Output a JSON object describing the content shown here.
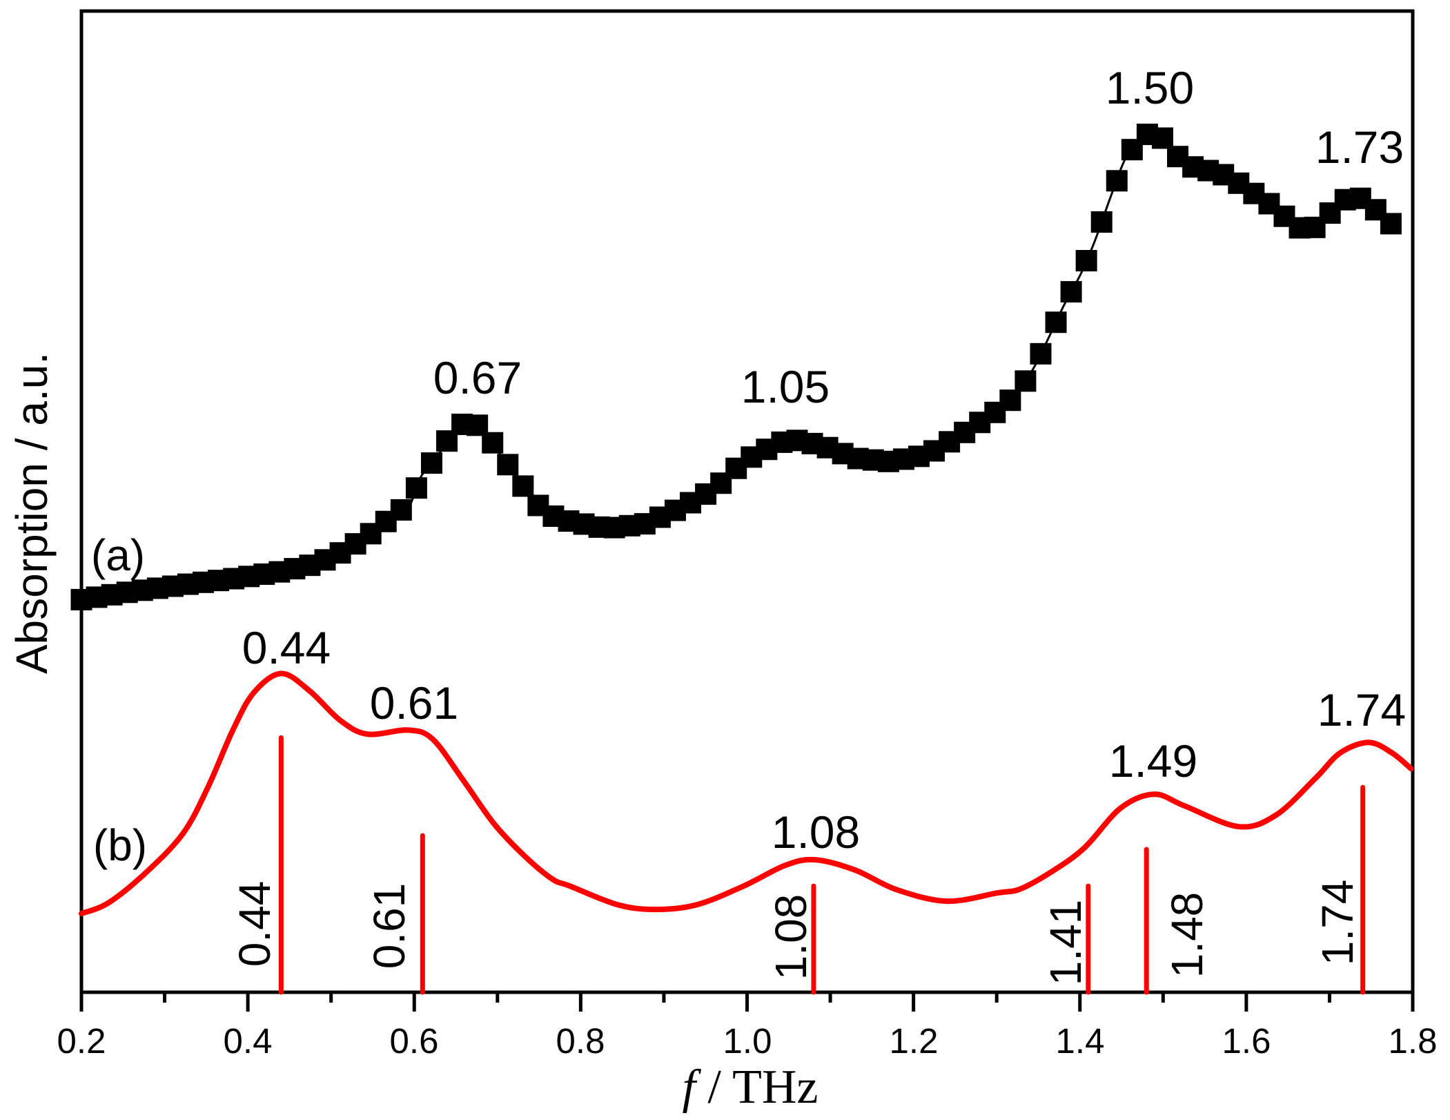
{
  "chart_data": {
    "type": "line",
    "title": "",
    "xlabel": "f / THz",
    "xlabel_italic_part": "f",
    "xlabel_rest": " / THz",
    "ylabel": "Absorption / a.u.",
    "xlim": [
      0.2,
      1.8
    ],
    "ylim": [
      0,
      14.22
    ],
    "x_ticks": [
      "0.2",
      "0.4",
      "0.6",
      "0.8",
      "1.0",
      "1.2",
      "1.4",
      "1.6",
      "1.8"
    ],
    "x_tick_values": [
      0.2,
      0.4,
      0.6,
      0.8,
      1.0,
      1.2,
      1.4,
      1.6,
      1.8
    ],
    "x_minor_tick_values": [
      0.3,
      0.5,
      0.7,
      0.9,
      1.1,
      1.3,
      1.5,
      1.7
    ],
    "y_ticks": [],
    "grid": false,
    "legend": null,
    "series": [
      {
        "name": "(a)",
        "label": "(a)",
        "style": "line+square-markers",
        "color": "#000000",
        "x": [
          0.2,
          0.257,
          0.332,
          0.387,
          0.442,
          0.479,
          0.504,
          0.522,
          0.541,
          0.559,
          0.576,
          0.594,
          0.608,
          0.63,
          0.648,
          0.667,
          0.685,
          0.703,
          0.722,
          0.74,
          0.758,
          0.781,
          0.831,
          0.878,
          0.924,
          0.962,
          0.996,
          1.032,
          1.051,
          1.091,
          1.129,
          1.172,
          1.217,
          1.256,
          1.29,
          1.309,
          1.327,
          1.345,
          1.363,
          1.381,
          1.401,
          1.418,
          1.437,
          1.455,
          1.474,
          1.492,
          1.51,
          1.528,
          1.547,
          1.565,
          1.583,
          1.601,
          1.62,
          1.638,
          1.656,
          1.675,
          1.692,
          1.711,
          1.73,
          1.748,
          1.766,
          1.785
        ],
        "y": [
          5.69,
          5.8,
          5.92,
          6.0,
          6.1,
          6.2,
          6.32,
          6.44,
          6.59,
          6.74,
          6.94,
          7.05,
          7.47,
          7.81,
          8.16,
          8.3,
          8.13,
          7.8,
          7.49,
          7.17,
          6.94,
          6.84,
          6.72,
          6.79,
          7.04,
          7.3,
          7.7,
          7.92,
          8.02,
          7.92,
          7.74,
          7.69,
          7.79,
          8.07,
          8.34,
          8.49,
          8.71,
          9.06,
          9.5,
          9.96,
          10.41,
          10.89,
          11.53,
          12.09,
          12.39,
          12.5,
          12.2,
          11.99,
          11.92,
          11.89,
          11.79,
          11.64,
          11.49,
          11.34,
          11.12,
          11.02,
          11.17,
          11.44,
          11.55,
          11.44,
          11.2,
          11.05
        ]
      },
      {
        "name": "(b)",
        "label": "(b)",
        "style": "smooth-line",
        "color": "#ff0000",
        "x": [
          0.2,
          0.233,
          0.278,
          0.322,
          0.352,
          0.382,
          0.407,
          0.44,
          0.474,
          0.511,
          0.544,
          0.592,
          0.622,
          0.659,
          0.696,
          0.733,
          0.766,
          0.787,
          0.844,
          0.89,
          0.94,
          0.996,
          1.046,
          1.082,
          1.13,
          1.179,
          1.24,
          1.301,
          1.329,
          1.369,
          1.406,
          1.449,
          1.489,
          1.526,
          1.591,
          1.636,
          1.683,
          1.713,
          1.747,
          1.775,
          1.798
        ],
        "y": [
          1.14,
          1.3,
          1.74,
          2.3,
          2.97,
          3.8,
          4.34,
          4.62,
          4.37,
          3.94,
          3.74,
          3.8,
          3.67,
          3.07,
          2.44,
          1.97,
          1.64,
          1.54,
          1.27,
          1.2,
          1.27,
          1.54,
          1.84,
          1.92,
          1.77,
          1.49,
          1.32,
          1.44,
          1.5,
          1.77,
          2.1,
          2.67,
          2.87,
          2.7,
          2.4,
          2.57,
          3.1,
          3.47,
          3.62,
          3.47,
          3.24
        ]
      }
    ],
    "sticks": {
      "color": "#ff0000",
      "x": [
        0.44,
        0.61,
        1.08,
        1.41,
        1.48,
        1.74
      ],
      "height": [
        3.69,
        2.27,
        1.54,
        1.54,
        2.07,
        2.97
      ],
      "labels": [
        "0.44",
        "0.61",
        "1.08",
        "1.41",
        "1.48",
        "1.74"
      ]
    },
    "annotations": {
      "series_a_peaks": [
        "0.67",
        "1.05",
        "1.50",
        "1.73"
      ],
      "series_b_peaks": [
        "0.44",
        "0.61",
        "1.08",
        "1.49",
        "1.74"
      ],
      "series_a_label": "(a)",
      "series_b_label": "(b)"
    }
  }
}
